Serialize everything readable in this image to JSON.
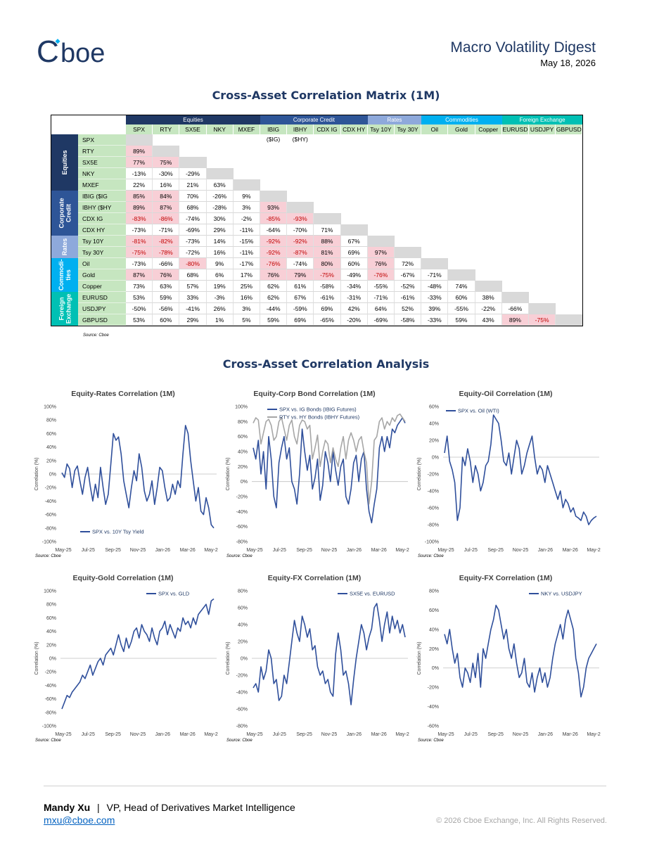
{
  "header": {
    "logo_text": "Cboe",
    "title": "Macro Volatility Digest",
    "date": "May 18, 2026"
  },
  "matrix": {
    "title": "Cross-Asset Correlation Matrix (1M)",
    "source": "Source: Cboe",
    "groups": [
      {
        "name": "Equities",
        "band_label": "Equities",
        "color": "#1f3864",
        "start": 0,
        "count": 5
      },
      {
        "name": "Corporate Credit",
        "band_label": "Corporate Credit",
        "color": "#2e5597",
        "start": 5,
        "count": 4
      },
      {
        "name": "Rates",
        "band_label": "Rates",
        "color": "#8ea9db",
        "start": 9,
        "count": 2
      },
      {
        "name": "Commodities",
        "band_label": "Commodi- ties",
        "color": "#00b0f0",
        "start": 11,
        "count": 3
      },
      {
        "name": "Foreign Exchange",
        "band_label": "Foreign Exchange",
        "color": "#00c0b4",
        "start": 14,
        "count": 3
      }
    ],
    "columns": [
      "SPX",
      "RTY",
      "SX5E",
      "NKY",
      "MXEF",
      "IBIG ($IG)",
      "IBHY ($HY)",
      "CDX IG",
      "CDX HY",
      "Tsy 10Y",
      "Tsy 30Y",
      "Oil",
      "Gold",
      "Copper",
      "EURUSD",
      "USDJPY",
      "GBPUSD"
    ],
    "rows": [
      {
        "label": "SPX",
        "values": []
      },
      {
        "label": "RTY",
        "values": [
          "89%"
        ]
      },
      {
        "label": "SX5E",
        "values": [
          "77%",
          "75%"
        ]
      },
      {
        "label": "NKY",
        "values": [
          "-13%",
          "-30%",
          "-29%"
        ]
      },
      {
        "label": "MXEF",
        "values": [
          "22%",
          "16%",
          "21%",
          "63%"
        ]
      },
      {
        "label": "IBIG ($IG Bonds)",
        "values": [
          "85%",
          "84%",
          "70%",
          "-26%",
          "9%"
        ]
      },
      {
        "label": "IBHY ($HY Bonds)",
        "values": [
          "89%",
          "87%",
          "68%",
          "-28%",
          "3%",
          "93%"
        ]
      },
      {
        "label": "CDX IG",
        "values": [
          "-83%",
          "-86%",
          "-74%",
          "30%",
          "-2%",
          "-85%",
          "-93%"
        ]
      },
      {
        "label": "CDX HY",
        "values": [
          "-73%",
          "-71%",
          "-69%",
          "29%",
          "-11%",
          "-64%",
          "-70%",
          "71%"
        ]
      },
      {
        "label": "Tsy 10Y",
        "values": [
          "-81%",
          "-82%",
          "-73%",
          "14%",
          "-15%",
          "-92%",
          "-92%",
          "88%",
          "67%"
        ]
      },
      {
        "label": "Tsy 30Y",
        "values": [
          "-75%",
          "-78%",
          "-72%",
          "16%",
          "-11%",
          "-92%",
          "-87%",
          "81%",
          "69%",
          "97%"
        ]
      },
      {
        "label": "Oil",
        "values": [
          "-73%",
          "-66%",
          "-80%",
          "9%",
          "-17%",
          "-76%",
          "-74%",
          "80%",
          "60%",
          "76%",
          "72%"
        ]
      },
      {
        "label": "Gold",
        "values": [
          "87%",
          "76%",
          "68%",
          "6%",
          "17%",
          "76%",
          "79%",
          "-75%",
          "-49%",
          "-76%",
          "-67%",
          "-71%"
        ]
      },
      {
        "label": "Copper",
        "values": [
          "73%",
          "63%",
          "57%",
          "19%",
          "25%",
          "62%",
          "61%",
          "-58%",
          "-34%",
          "-55%",
          "-52%",
          "-48%",
          "74%"
        ]
      },
      {
        "label": "EURUSD",
        "values": [
          "53%",
          "59%",
          "33%",
          "-3%",
          "16%",
          "62%",
          "67%",
          "-61%",
          "-31%",
          "-71%",
          "-61%",
          "-33%",
          "60%",
          "38%"
        ]
      },
      {
        "label": "USDJPY",
        "values": [
          "-50%",
          "-56%",
          "-41%",
          "26%",
          "3%",
          "-44%",
          "-59%",
          "69%",
          "42%",
          "64%",
          "52%",
          "39%",
          "-55%",
          "-22%",
          "-66%"
        ]
      },
      {
        "label": "GBPUSD",
        "values": [
          "53%",
          "60%",
          "29%",
          "1%",
          "5%",
          "59%",
          "69%",
          "-65%",
          "-20%",
          "-69%",
          "-58%",
          "-33%",
          "59%",
          "43%",
          "89%",
          "-75%"
        ]
      }
    ],
    "highlight_threshold": 0.75,
    "highlight_color": "#f8cfd6",
    "diagonal_color": "#d9d9d9"
  },
  "analysis": {
    "title": "Cross-Asset Correlation Analysis",
    "x_ticks": [
      "May-25",
      "Jul-25",
      "Sep-25",
      "Nov-25",
      "Jan-26",
      "Mar-26",
      "May-26"
    ],
    "y_label": "Correlation (%)",
    "source": "Source: Cboe",
    "series_color": "#2f4f9b",
    "secondary_color": "#a6a6a6"
  },
  "chart_data": [
    {
      "type": "line",
      "title": "Equity-Rates Correlation (1M)",
      "ylabel": "Correlation (%)",
      "ylim": [
        -100,
        100
      ],
      "yticks": [
        "100%",
        "80%",
        "60%",
        "40%",
        "20%",
        "0%",
        "-20%",
        "-40%",
        "-60%",
        "-80%",
        "-100%"
      ],
      "legend_position": "bottom-left",
      "series": [
        {
          "name": "SPX vs. 10Y Tsy Yield",
          "values": [
            2,
            -5,
            15,
            8,
            -20,
            5,
            12,
            -10,
            -30,
            -5,
            10,
            -18,
            -40,
            -15,
            -35,
            10,
            -20,
            -45,
            -30,
            15,
            60,
            50,
            55,
            30,
            -10,
            -30,
            -50,
            -20,
            5,
            -10,
            30,
            10,
            -25,
            -40,
            -30,
            -10,
            -45,
            -20,
            10,
            5,
            -20,
            -40,
            -35,
            -15,
            -30,
            -10,
            -20,
            30,
            72,
            60,
            20,
            -10,
            -40,
            -20,
            -55,
            -60,
            -35,
            -50,
            -75,
            -80
          ]
        }
      ]
    },
    {
      "type": "line",
      "title": "Equity-Corp Bond Correlation (1M)",
      "ylabel": "Correlation (%)",
      "ylim": [
        -80,
        100
      ],
      "yticks": [
        "100%",
        "80%",
        "60%",
        "40%",
        "20%",
        "0%",
        "-20%",
        "-40%",
        "-60%",
        "-80%"
      ],
      "legend_position": "top-right",
      "series": [
        {
          "name": "SPX vs. IG Bonds (IBIG Futures)",
          "values": [
            45,
            30,
            55,
            10,
            40,
            -10,
            60,
            30,
            -20,
            -35,
            25,
            45,
            60,
            30,
            45,
            0,
            -10,
            -30,
            10,
            70,
            40,
            15,
            35,
            -10,
            5,
            30,
            -25,
            -5,
            40,
            25,
            0,
            40,
            15,
            -5,
            20,
            30,
            -20,
            -30,
            -10,
            25,
            35,
            0,
            30,
            40,
            -10,
            -40,
            -55,
            -30,
            -10,
            45,
            60,
            40,
            60,
            45,
            70,
            65,
            75,
            80,
            85,
            78
          ]
        },
        {
          "name": "RTY vs. HY Bonds (IBHY Futures)",
          "values": [
            78,
            85,
            82,
            50,
            65,
            80,
            83,
            75,
            55,
            60,
            80,
            85,
            70,
            55,
            75,
            82,
            60,
            50,
            75,
            82,
            80,
            70,
            75,
            30,
            45,
            62,
            20,
            40,
            55,
            50,
            25,
            45,
            30,
            20,
            45,
            60,
            30,
            55,
            65,
            55,
            40,
            55,
            60,
            40,
            25,
            -30,
            0,
            55,
            60,
            80,
            85,
            70,
            80,
            75,
            85,
            80,
            88,
            90,
            85,
            80
          ]
        }
      ]
    },
    {
      "type": "line",
      "title": "Equity-Oil Correlation (1M)",
      "ylabel": "Correlation (%)",
      "ylim": [
        -100,
        60
      ],
      "yticks": [
        "60%",
        "40%",
        "20%",
        "0%",
        "-20%",
        "-40%",
        "-60%",
        "-80%",
        "-100%"
      ],
      "legend_position": "top-left",
      "series": [
        {
          "name": "SPX vs. Oil (WTI)",
          "values": [
            5,
            25,
            -5,
            -15,
            -30,
            -75,
            -60,
            0,
            -10,
            10,
            -5,
            -30,
            -10,
            -20,
            -40,
            -30,
            -10,
            -5,
            15,
            50,
            45,
            40,
            20,
            -5,
            -10,
            5,
            -20,
            0,
            20,
            10,
            -20,
            -10,
            5,
            15,
            25,
            0,
            -20,
            -10,
            -15,
            -30,
            -10,
            -20,
            -30,
            -40,
            -50,
            -40,
            -60,
            -50,
            -55,
            -65,
            -60,
            -70,
            -72,
            -75,
            -65,
            -70,
            -80,
            -75,
            -72,
            -70
          ]
        }
      ]
    },
    {
      "type": "line",
      "title": "Equity-Gold Correlation (1M)",
      "ylabel": "Correlation (%)",
      "ylim": [
        -100,
        100
      ],
      "yticks": [
        "100%",
        "80%",
        "60%",
        "40%",
        "20%",
        "0%",
        "-20%",
        "-40%",
        "-60%",
        "-80%",
        "-100%"
      ],
      "legend_position": "top-right",
      "series": [
        {
          "name": "SPX vs. GLD",
          "values": [
            -75,
            -65,
            -55,
            -58,
            -50,
            -45,
            -40,
            -35,
            -25,
            -30,
            -20,
            -10,
            -25,
            -15,
            -5,
            0,
            -10,
            5,
            10,
            15,
            5,
            20,
            35,
            20,
            10,
            30,
            15,
            25,
            40,
            45,
            30,
            50,
            40,
            35,
            25,
            45,
            30,
            20,
            40,
            45,
            55,
            35,
            50,
            40,
            30,
            45,
            40,
            60,
            50,
            55,
            45,
            60,
            50,
            65,
            70,
            75,
            80,
            65,
            85,
            88
          ]
        }
      ]
    },
    {
      "type": "line",
      "title": "Equity-FX Correlation (1M)",
      "ylabel": "Correlation (%)",
      "ylim": [
        -80,
        80
      ],
      "yticks": [
        "80%",
        "60%",
        "40%",
        "20%",
        "0%",
        "-20%",
        "-40%",
        "-60%",
        "-80%"
      ],
      "legend_position": "top-right",
      "series": [
        {
          "name": "SX5E vs. EURUSD",
          "values": [
            -35,
            -30,
            -40,
            -10,
            -25,
            -15,
            10,
            0,
            -30,
            -25,
            -50,
            -45,
            -20,
            -30,
            -5,
            20,
            45,
            30,
            20,
            50,
            40,
            25,
            35,
            10,
            15,
            -10,
            -20,
            -15,
            -30,
            -25,
            -40,
            -45,
            5,
            30,
            10,
            -20,
            -15,
            -30,
            -55,
            -25,
            0,
            20,
            40,
            30,
            10,
            25,
            35,
            60,
            65,
            45,
            20,
            40,
            55,
            30,
            50,
            35,
            45,
            30,
            40,
            25
          ]
        }
      ]
    },
    {
      "type": "line",
      "title": "Equity-FX Correlation (1M)",
      "ylabel": "Correlation (%)",
      "ylim": [
        -60,
        80
      ],
      "yticks": [
        "80%",
        "60%",
        "40%",
        "20%",
        "0%",
        "-20%",
        "-40%",
        "-60%"
      ],
      "legend_position": "top-right",
      "series": [
        {
          "name": "NKY vs. USDJPY",
          "values": [
            35,
            25,
            40,
            20,
            5,
            15,
            -10,
            -20,
            0,
            -5,
            -15,
            5,
            -10,
            15,
            -20,
            20,
            10,
            25,
            40,
            50,
            65,
            60,
            45,
            30,
            40,
            20,
            10,
            25,
            5,
            -10,
            -5,
            10,
            -15,
            -20,
            -5,
            -25,
            -10,
            0,
            -15,
            -5,
            -20,
            -10,
            10,
            25,
            35,
            45,
            30,
            50,
            60,
            50,
            40,
            10,
            -5,
            -30,
            -20,
            0,
            10,
            15,
            20,
            25
          ]
        }
      ]
    }
  ],
  "footer": {
    "author_name": "Mandy Xu",
    "separator": "|",
    "author_title": "VP, Head of Derivatives Market Intelligence",
    "email": "mxu@cboe.com",
    "copyright": "© 2026 Cboe Exchange, Inc. All Rights Reserved."
  }
}
